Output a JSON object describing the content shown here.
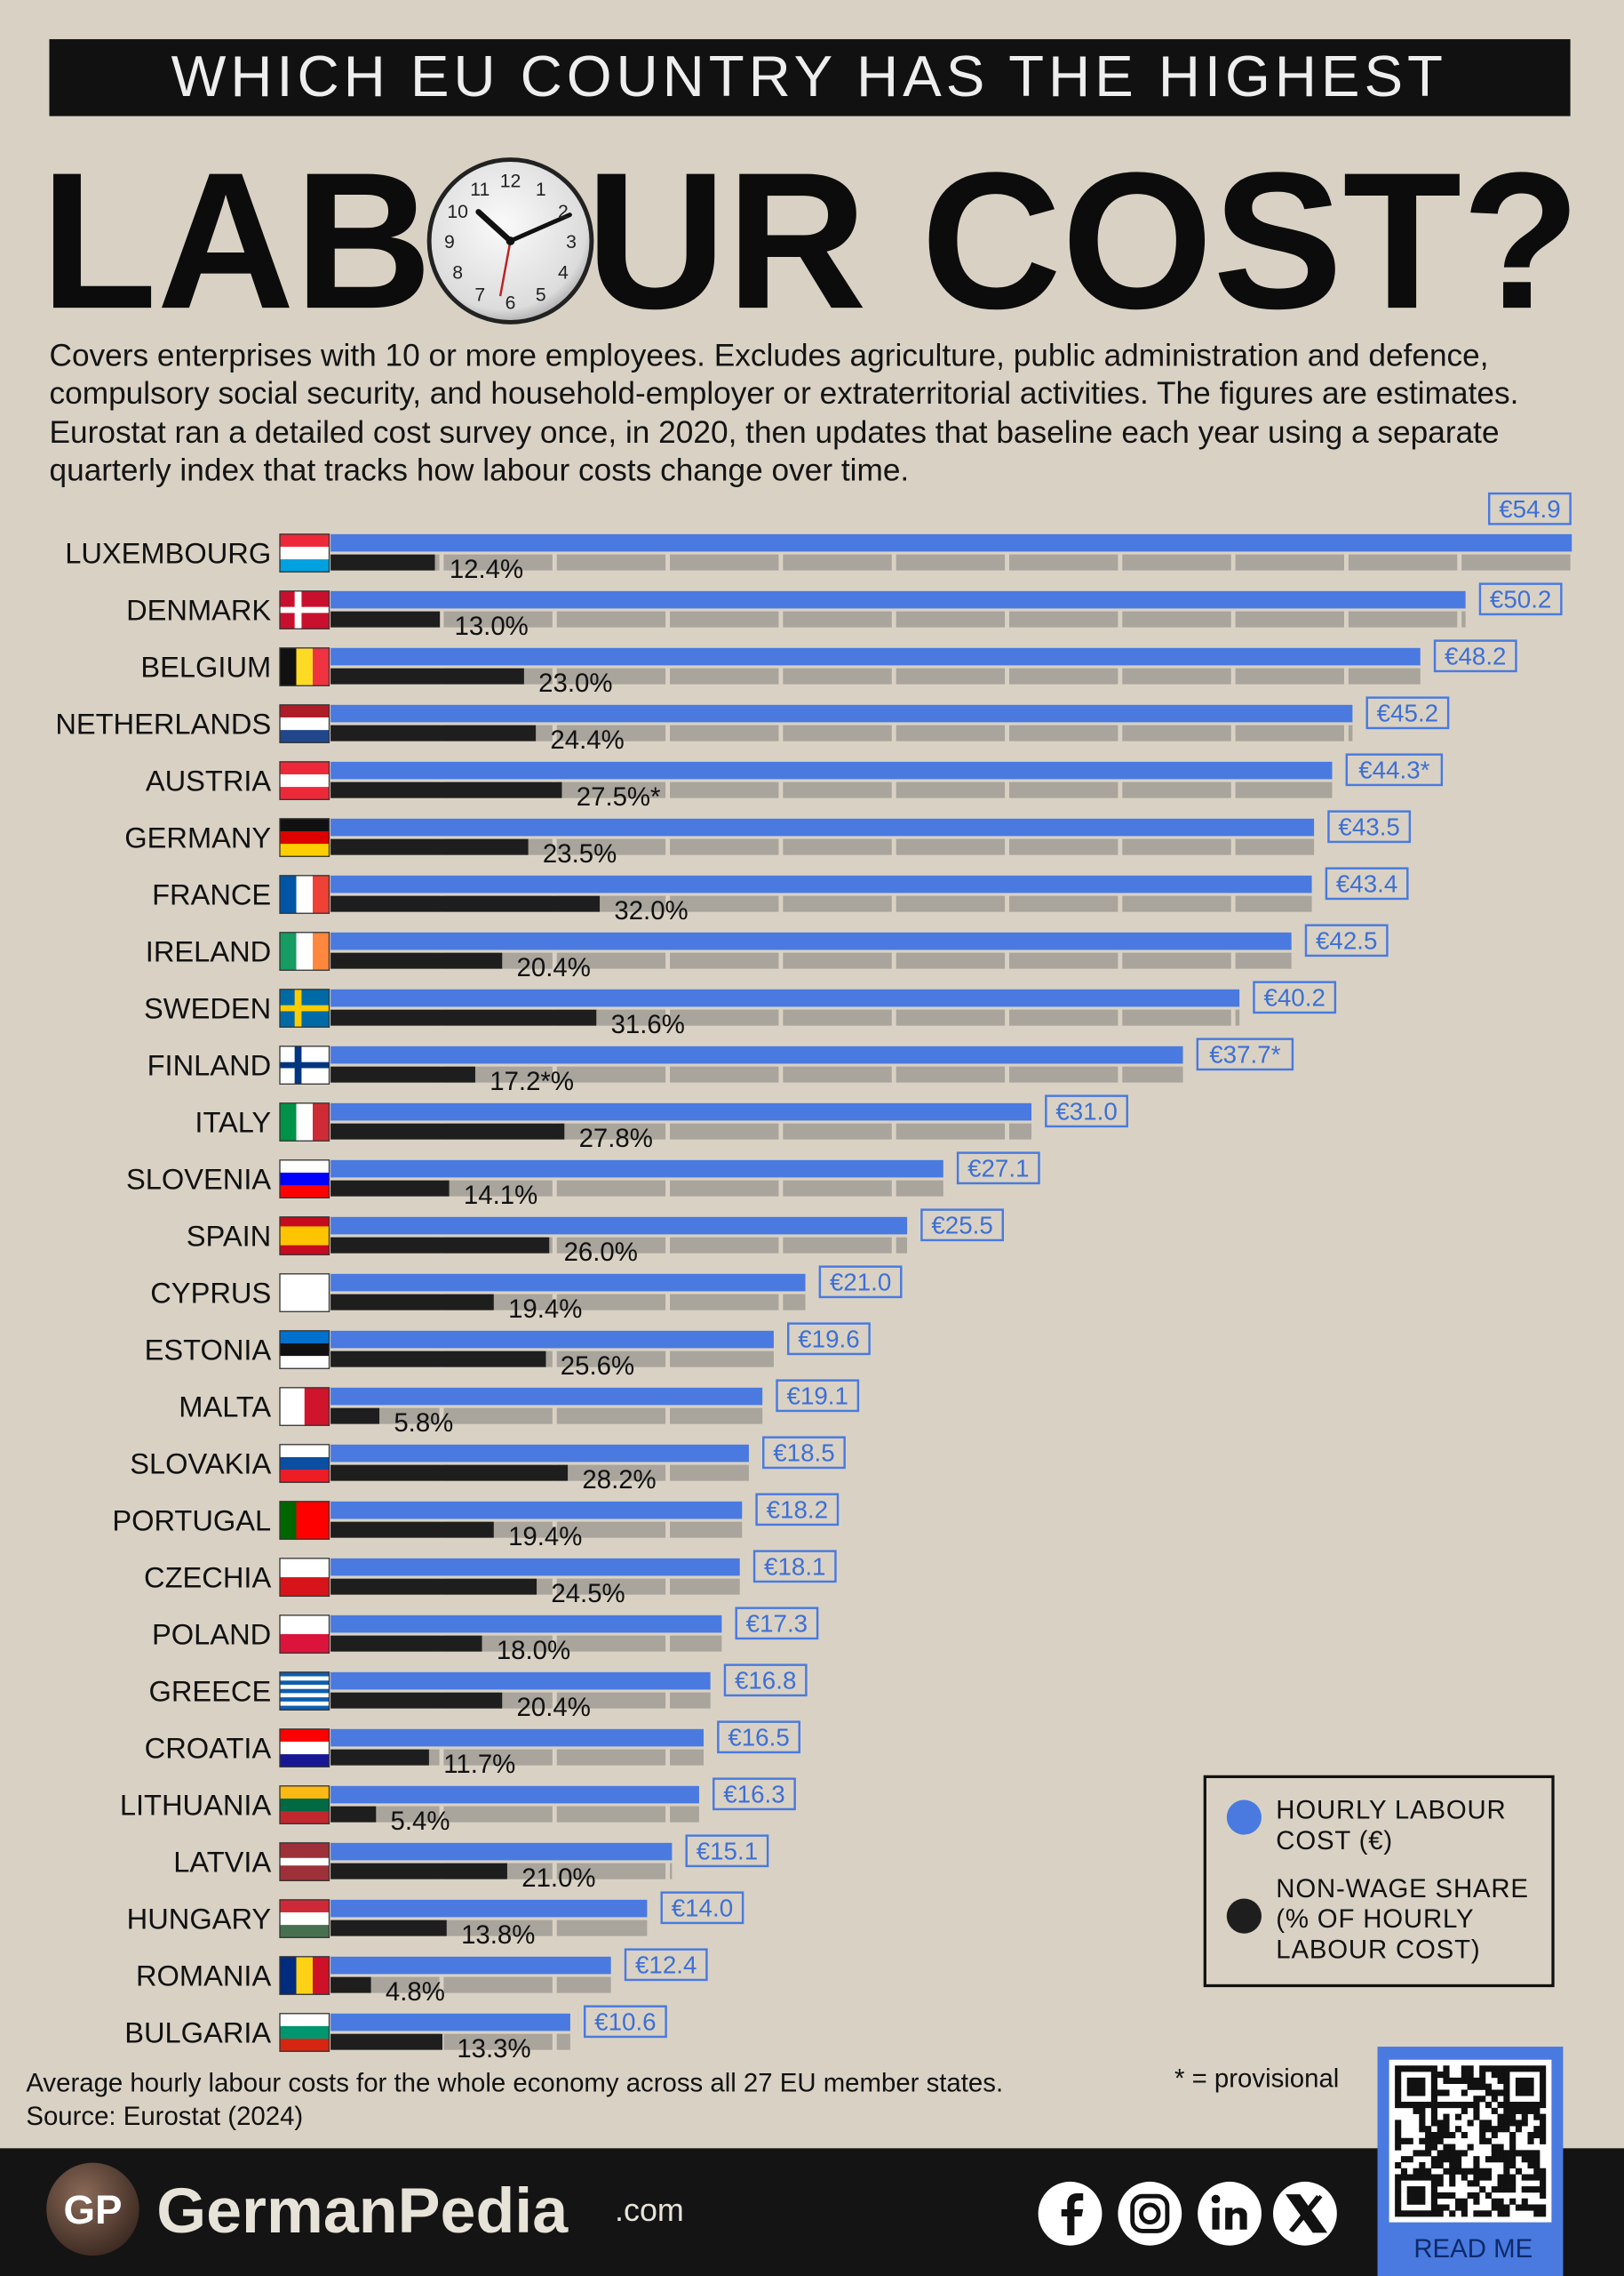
{
  "header": "WHICH EU COUNTRY HAS THE HIGHEST",
  "title_left": "LAB",
  "title_right": "UR COST?",
  "clock_numbers": [
    12,
    1,
    2,
    3,
    4,
    5,
    6,
    7,
    8,
    9,
    10,
    11
  ],
  "description": "Covers enterprises with 10 or more employees. Excludes agriculture, public administration and defence, compulsory social security, and household-employer or extraterritorial activities. The figures are estimates. Eurostat ran a detailed cost survey once, in 2020, then updates that baseline each year using a separate quarterly index that tracks how labour costs change over time.",
  "chart_data": {
    "type": "bar",
    "categories": [
      "LUXEMBOURG",
      "DENMARK",
      "BELGIUM",
      "NETHERLANDS",
      "AUSTRIA",
      "GERMANY",
      "FRANCE",
      "IRELAND",
      "SWEDEN",
      "FINLAND",
      "ITALY",
      "SLOVENIA",
      "SPAIN",
      "CYPRUS",
      "ESTONIA",
      "MALTA",
      "SLOVAKIA",
      "PORTUGAL",
      "CZECHIA",
      "POLAND",
      "GREECE",
      "CROATIA",
      "LITHUANIA",
      "LATVIA",
      "HUNGARY",
      "ROMANIA",
      "BULGARIA"
    ],
    "series": [
      {
        "name": "HOURLY LABOUR COST (€)",
        "color": "#4a7ae0",
        "values": [
          54.9,
          50.2,
          48.2,
          45.2,
          44.3,
          43.5,
          43.4,
          42.5,
          40.2,
          37.7,
          31.0,
          27.1,
          25.5,
          21.0,
          19.6,
          19.1,
          18.5,
          18.2,
          18.1,
          17.3,
          16.8,
          16.5,
          16.3,
          15.1,
          14.0,
          12.4,
          10.6
        ],
        "value_labels": [
          "€54.9",
          "€50.2",
          "€48.2",
          "€45.2",
          "€44.3*",
          "€43.5",
          "€43.4",
          "€42.5",
          "€40.2",
          "€37.7*",
          "€31.0",
          "€27.1",
          "€25.5",
          "€21.0",
          "€19.6",
          "€19.1",
          "€18.5",
          "€18.2",
          "€18.1",
          "€17.3",
          "€16.8",
          "€16.5",
          "€16.3",
          "€15.1",
          "€14.0",
          "€12.4",
          "€10.6"
        ]
      },
      {
        "name": "NON-WAGE SHARE (% OF HOURLY LABOUR COST)",
        "color": "#1e1e1e",
        "values": [
          12.4,
          13.0,
          23.0,
          24.4,
          27.5,
          23.5,
          32.0,
          20.4,
          31.6,
          17.2,
          27.8,
          14.1,
          26.0,
          19.4,
          25.6,
          5.8,
          28.2,
          19.4,
          24.5,
          18.0,
          20.4,
          11.7,
          5.4,
          21.0,
          13.8,
          4.8,
          13.3
        ],
        "value_labels": [
          "12.4%",
          "13.0%",
          "23.0%",
          "24.4%",
          "27.5%*",
          "23.5%",
          "32.0%",
          "20.4%",
          "31.6%",
          "17.2*%",
          "27.8%",
          "14.1%",
          "26.0%",
          "19.4%",
          "25.6%",
          "5.8%",
          "28.2%",
          "19.4%",
          "24.5%",
          "18.0%",
          "20.4%",
          "11.7%",
          "5.4%",
          "21.0%",
          "13.8%",
          "4.8%",
          "13.3%"
        ]
      }
    ],
    "track_color": "#a9a49c"
  },
  "footnote": "Average hourly labour costs for the whole economy across all 27 EU member states.",
  "source": "Source: Eurostat (2024)",
  "provisional_note": "* = provisional",
  "brand": {
    "logo": "GP",
    "name": "GermanPedia",
    "domain": ".com"
  },
  "qr_label": "READ ME"
}
